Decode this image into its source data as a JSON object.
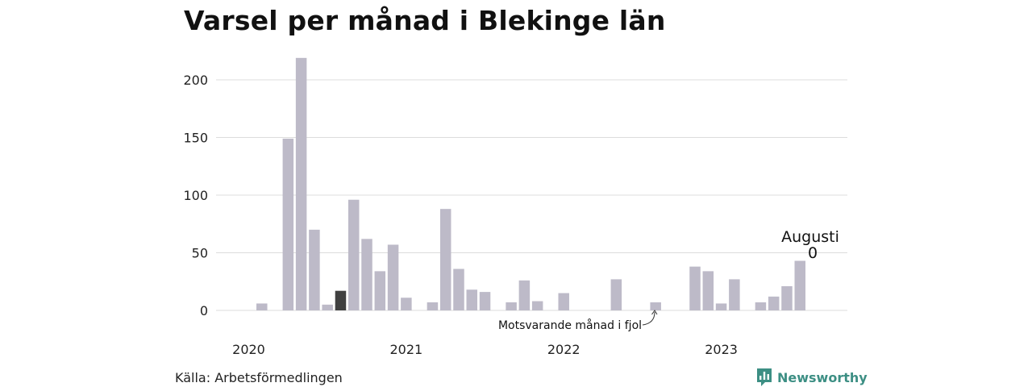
{
  "title": "Varsel per månad i Blekinge län",
  "source": "Källa: Arbetsförmedlingen",
  "brand": {
    "label": "Newsworthy",
    "icon": "newsworthy-logo-icon"
  },
  "annotation": {
    "month": "Augusti",
    "value": "0"
  },
  "note": "Motsvarande månad i fjol",
  "colors": {
    "bar": "#bdbac8",
    "highlight": "#404040",
    "grid": "#dcdcdc",
    "brand": "#3d8f84"
  },
  "chart_data": {
    "type": "bar",
    "title": "Varsel per månad i Blekinge län",
    "ylim": [
      0,
      225
    ],
    "yticks": [
      0,
      50,
      100,
      150,
      200
    ],
    "grid": true,
    "xtick_labels": [
      {
        "label": "2020",
        "index": 0
      },
      {
        "label": "2021",
        "index": 12
      },
      {
        "label": "2022",
        "index": 24
      },
      {
        "label": "2023",
        "index": 36
      }
    ],
    "categories": [
      "2020-01",
      "2020-02",
      "2020-03",
      "2020-04",
      "2020-05",
      "2020-06",
      "2020-07",
      "2020-08",
      "2020-09",
      "2020-10",
      "2020-11",
      "2020-12",
      "2021-01",
      "2021-02",
      "2021-03",
      "2021-04",
      "2021-05",
      "2021-06",
      "2021-07",
      "2021-08",
      "2021-09",
      "2021-10",
      "2021-11",
      "2021-12",
      "2022-01",
      "2022-02",
      "2022-03",
      "2022-04",
      "2022-05",
      "2022-06",
      "2022-07",
      "2022-08",
      "2022-09",
      "2022-10",
      "2022-11",
      "2022-12",
      "2023-01",
      "2023-02",
      "2023-03",
      "2023-04",
      "2023-05",
      "2023-06",
      "2023-07",
      "2023-08"
    ],
    "values": [
      0,
      6,
      0,
      149,
      219,
      70,
      5,
      17,
      96,
      62,
      34,
      57,
      11,
      0,
      7,
      88,
      36,
      18,
      16,
      0,
      7,
      26,
      8,
      0,
      15,
      0,
      0,
      0,
      27,
      0,
      0,
      7,
      0,
      0,
      38,
      34,
      6,
      27,
      0,
      7,
      12,
      21,
      43,
      0
    ],
    "highlighted": [
      "2020-08",
      "2021-08"
    ]
  }
}
